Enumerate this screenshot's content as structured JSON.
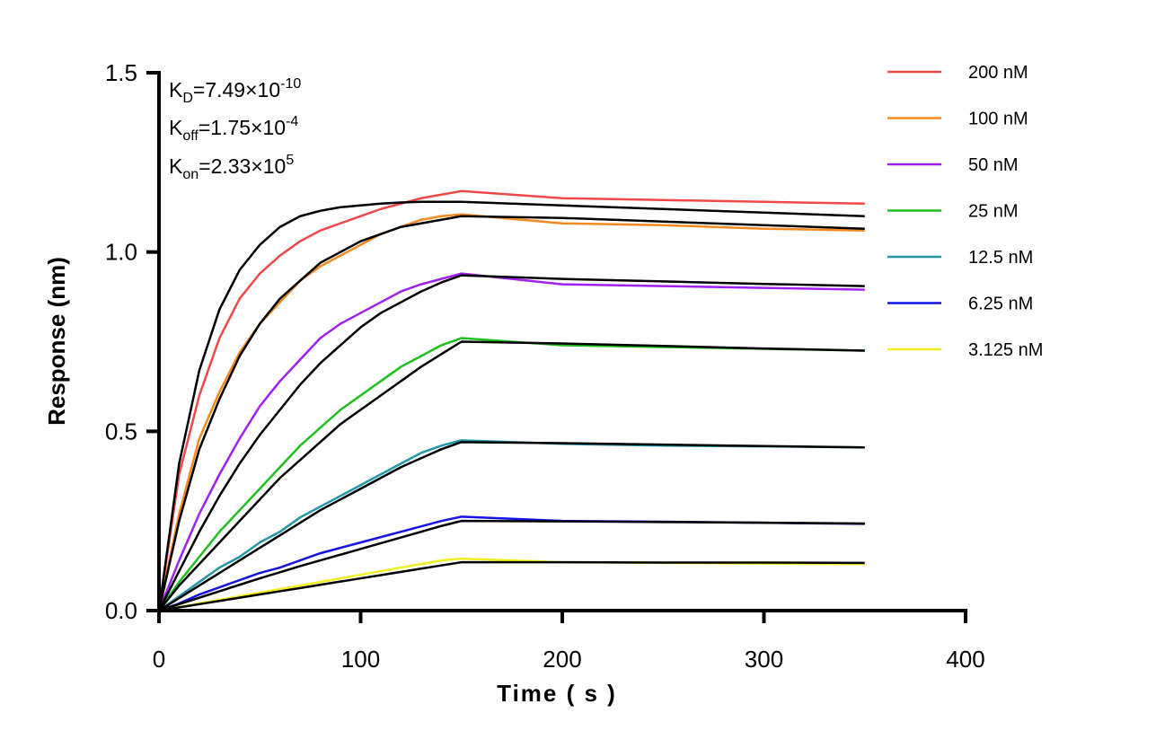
{
  "chart_data": {
    "type": "line",
    "title": "",
    "xlabel": "Time ( s )",
    "ylabel": "Response (nm)",
    "xlim": [
      0,
      400
    ],
    "ylim": [
      0,
      1.5
    ],
    "x_ticks": [
      "0",
      "100",
      "200",
      "300",
      "400"
    ],
    "y_ticks": [
      "0.0",
      "0.5",
      "1.0",
      "1.5"
    ],
    "grid": false,
    "legend_position": "right",
    "annotations": {
      "kd": {
        "label": "K",
        "sub": "D",
        "value": "=7.49×10",
        "exp": "-10"
      },
      "koff": {
        "label": "K",
        "sub": "off",
        "value": "=1.75×10",
        "exp": "-4"
      },
      "kon": {
        "label": "K",
        "sub": "on",
        "value": "=2.33×10",
        "exp": "5"
      }
    },
    "fit_color": "#000000",
    "x": [
      0,
      10,
      20,
      30,
      40,
      50,
      60,
      70,
      80,
      90,
      100,
      110,
      120,
      130,
      140,
      150,
      200,
      250,
      300,
      350
    ],
    "series": [
      {
        "name": "200 nM",
        "color": "#f04848",
        "values": [
          0,
          0.38,
          0.6,
          0.76,
          0.87,
          0.94,
          0.99,
          1.03,
          1.06,
          1.08,
          1.1,
          1.12,
          1.135,
          1.15,
          1.16,
          1.17,
          1.15,
          1.145,
          1.14,
          1.135
        ],
        "fit": [
          0,
          0.41,
          0.67,
          0.84,
          0.95,
          1.02,
          1.07,
          1.1,
          1.115,
          1.125,
          1.13,
          1.135,
          1.138,
          1.14,
          1.14,
          1.14,
          1.13,
          1.12,
          1.11,
          1.1
        ]
      },
      {
        "name": "100 nM",
        "color": "#f5891f",
        "values": [
          0,
          0.27,
          0.48,
          0.61,
          0.72,
          0.8,
          0.86,
          0.92,
          0.96,
          0.99,
          1.02,
          1.05,
          1.07,
          1.09,
          1.1,
          1.105,
          1.08,
          1.075,
          1.065,
          1.06
        ],
        "fit": [
          0,
          0.25,
          0.45,
          0.59,
          0.71,
          0.8,
          0.87,
          0.92,
          0.97,
          1.0,
          1.03,
          1.05,
          1.07,
          1.08,
          1.09,
          1.1,
          1.095,
          1.085,
          1.075,
          1.065
        ]
      },
      {
        "name": "50 nM",
        "color": "#a020f0",
        "values": [
          0,
          0.14,
          0.27,
          0.38,
          0.48,
          0.57,
          0.64,
          0.7,
          0.76,
          0.8,
          0.83,
          0.86,
          0.89,
          0.91,
          0.925,
          0.94,
          0.91,
          0.905,
          0.9,
          0.895
        ],
        "fit": [
          0,
          0.11,
          0.22,
          0.32,
          0.41,
          0.49,
          0.56,
          0.63,
          0.69,
          0.74,
          0.79,
          0.83,
          0.86,
          0.89,
          0.915,
          0.935,
          0.925,
          0.918,
          0.911,
          0.905
        ]
      },
      {
        "name": "25 nM",
        "color": "#1fbf1f",
        "values": [
          0,
          0.08,
          0.15,
          0.22,
          0.28,
          0.34,
          0.4,
          0.46,
          0.51,
          0.56,
          0.6,
          0.64,
          0.68,
          0.71,
          0.74,
          0.76,
          0.74,
          0.735,
          0.73,
          0.725
        ],
        "fit": [
          0,
          0.07,
          0.13,
          0.19,
          0.25,
          0.31,
          0.37,
          0.42,
          0.47,
          0.52,
          0.56,
          0.6,
          0.64,
          0.68,
          0.715,
          0.75,
          0.745,
          0.738,
          0.731,
          0.725
        ]
      },
      {
        "name": "12.5 nM",
        "color": "#2596a8",
        "values": [
          0,
          0.04,
          0.08,
          0.12,
          0.15,
          0.19,
          0.22,
          0.26,
          0.29,
          0.32,
          0.35,
          0.38,
          0.41,
          0.44,
          0.46,
          0.475,
          0.465,
          0.46,
          0.458,
          0.455
        ],
        "fit": [
          0,
          0.035,
          0.07,
          0.105,
          0.14,
          0.175,
          0.21,
          0.245,
          0.28,
          0.31,
          0.34,
          0.37,
          0.4,
          0.425,
          0.45,
          0.47,
          0.467,
          0.463,
          0.459,
          0.455
        ]
      },
      {
        "name": "6.25 nM",
        "color": "#1414e6",
        "values": [
          0,
          0.02,
          0.045,
          0.065,
          0.085,
          0.105,
          0.12,
          0.14,
          0.16,
          0.175,
          0.19,
          0.205,
          0.22,
          0.235,
          0.25,
          0.262,
          0.25,
          0.248,
          0.245,
          0.242
        ],
        "fit": [
          0,
          0.018,
          0.036,
          0.054,
          0.072,
          0.09,
          0.107,
          0.124,
          0.14,
          0.156,
          0.172,
          0.188,
          0.204,
          0.22,
          0.236,
          0.25,
          0.249,
          0.247,
          0.245,
          0.243
        ]
      },
      {
        "name": "3.125 nM",
        "color": "#f2ee1e",
        "values": [
          0,
          0.01,
          0.02,
          0.03,
          0.04,
          0.05,
          0.06,
          0.07,
          0.08,
          0.09,
          0.1,
          0.11,
          0.12,
          0.13,
          0.14,
          0.145,
          0.135,
          0.133,
          0.131,
          0.13
        ],
        "fit": [
          0,
          0.009,
          0.018,
          0.027,
          0.036,
          0.045,
          0.054,
          0.063,
          0.072,
          0.081,
          0.09,
          0.099,
          0.108,
          0.117,
          0.126,
          0.135,
          0.135,
          0.134,
          0.134,
          0.133
        ]
      }
    ]
  }
}
